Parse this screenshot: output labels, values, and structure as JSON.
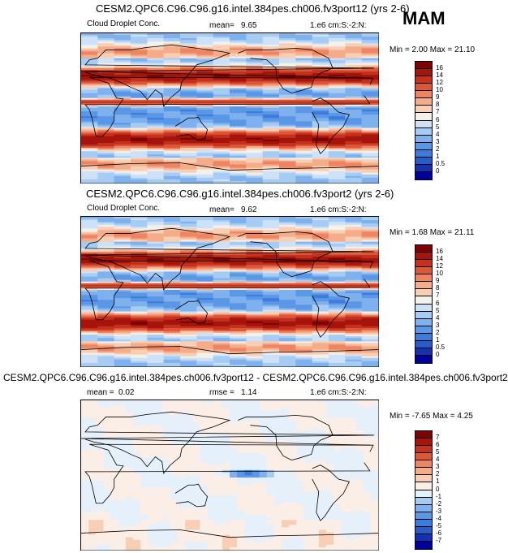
{
  "season": "MAM",
  "chart_data": [
    {
      "type": "heatmap",
      "title": "CESM2.QPC6.C96.C96.g16.intel.384pes.ch006.fv3port12 (yrs 2-6)",
      "variable": "Cloud Droplet Conc.",
      "mean_label": "mean=",
      "mean": "9.65",
      "units": "1.e6 cm:S:-2:N:",
      "minmax": "Min =  2.00 Max =  21.10",
      "min": 2.0,
      "max": 21.1,
      "levels": [
        "0",
        "0.5",
        "1",
        "2",
        "3",
        "4",
        "5",
        "6",
        "7",
        "8",
        "9",
        "10",
        "12",
        "14",
        "16"
      ],
      "colors": [
        "#00009a",
        "#1530b0",
        "#2a5cc8",
        "#3d7bdc",
        "#5a97e6",
        "#7eb1ee",
        "#a6ccf4",
        "#cde2f8",
        "#f4f0ea",
        "#f8cfb5",
        "#f5ac88",
        "#ef8462",
        "#dc5639",
        "#c4311e",
        "#a5150c",
        "#7e0403"
      ]
    },
    {
      "type": "heatmap",
      "title": "CESM2.QPC6.C96.C96.g16.intel.384pes.ch006.fv3port2 (yrs 2-6)",
      "variable": "Cloud Droplet Conc.",
      "mean_label": "mean=",
      "mean": "9.62",
      "units": "1.e6 cm:S:-2:N:",
      "minmax": "Min =  1.68 Max =  21.11",
      "min": 1.68,
      "max": 21.11,
      "levels": [
        "0",
        "0.5",
        "1",
        "2",
        "3",
        "4",
        "5",
        "6",
        "7",
        "8",
        "9",
        "10",
        "12",
        "14",
        "16"
      ],
      "colors": [
        "#00009a",
        "#1530b0",
        "#2a5cc8",
        "#3d7bdc",
        "#5a97e6",
        "#7eb1ee",
        "#a6ccf4",
        "#cde2f8",
        "#f4f0ea",
        "#f8cfb5",
        "#f5ac88",
        "#ef8462",
        "#dc5639",
        "#c4311e",
        "#a5150c",
        "#7e0403"
      ]
    },
    {
      "type": "heatmap",
      "title": "CESM2.QPC6.C96.C96.g16.intel.384pes.ch006.fv3port12 - CESM2.QPC6.C96.C96.g16.intel.384pes.ch006.fv3port2",
      "mean_label": "mean =",
      "mean": "0.02",
      "rmse_label": "rmse =",
      "rmse": "1.14",
      "units": "1.e6 cm:S:-2:N:",
      "minmax": "Min = -7.65 Max =  4.25",
      "min": -7.65,
      "max": 4.25,
      "levels": [
        "-7",
        "-6",
        "-5",
        "-4",
        "-3",
        "-2",
        "-1",
        "0",
        "1",
        "2",
        "3",
        "4",
        "5",
        "6",
        "7"
      ],
      "colors": [
        "#00009a",
        "#1530b0",
        "#2a5cc8",
        "#3d7bdc",
        "#5a97e6",
        "#7eb1ee",
        "#a6ccf4",
        "#e6f0fa",
        "#fbeee6",
        "#f8cfb5",
        "#f5ac88",
        "#ef8462",
        "#dc5639",
        "#c4311e",
        "#a5150c",
        "#7e0403"
      ]
    }
  ]
}
